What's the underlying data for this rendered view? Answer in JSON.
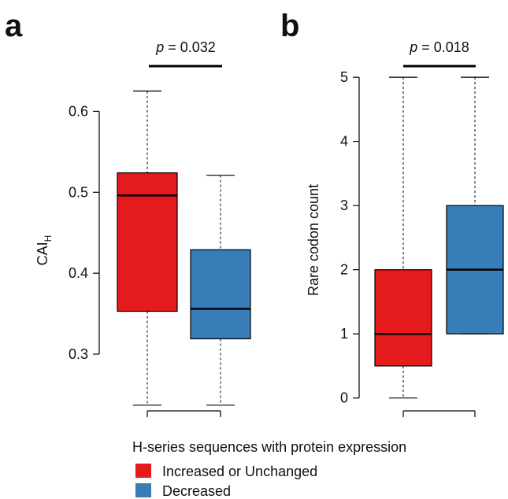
{
  "chart_data": [
    {
      "type": "boxplot",
      "panel_label": "a",
      "ylabel": "CAI",
      "ylabel_subscript": "H",
      "ylim": [
        0.23,
        0.65
      ],
      "yticks": [
        0.3,
        0.4,
        0.5,
        0.6
      ],
      "ytick_labels": [
        "0.3",
        "0.4",
        "0.5",
        "0.6"
      ],
      "pvalue": {
        "prefix": "p",
        "text": " = 0.032"
      },
      "series": [
        {
          "name": "Increased or Unchanged",
          "color": "#e41a1c",
          "whisker_low": 0.237,
          "q1": 0.353,
          "median": 0.496,
          "q3": 0.524,
          "whisker_high": 0.625
        },
        {
          "name": "Decreased",
          "color": "#377eb8",
          "whisker_low": 0.237,
          "q1": 0.319,
          "median": 0.356,
          "q3": 0.429,
          "whisker_high": 0.521
        }
      ]
    },
    {
      "type": "boxplot",
      "panel_label": "b",
      "ylabel": "Rare codon count",
      "ylim": [
        -0.2,
        5.1
      ],
      "yticks": [
        0,
        1,
        2,
        3,
        4,
        5
      ],
      "ytick_labels": [
        "0",
        "1",
        "2",
        "3",
        "4",
        "5"
      ],
      "pvalue": {
        "prefix": "p",
        "text": " = 0.018"
      },
      "series": [
        {
          "name": "Increased or Unchanged",
          "color": "#e41a1c",
          "whisker_low": 0,
          "q1": 0.5,
          "median": 1,
          "q3": 2,
          "whisker_high": 5
        },
        {
          "name": "Decreased",
          "color": "#377eb8",
          "whisker_low": 1,
          "q1": 1,
          "median": 2,
          "q3": 3,
          "whisker_high": 5
        }
      ]
    }
  ],
  "legend": {
    "title": "H-series sequences with protein expression",
    "items": [
      {
        "label": "Increased or Unchanged",
        "color": "#e41a1c"
      },
      {
        "label": "Decreased",
        "color": "#377eb8"
      }
    ]
  }
}
